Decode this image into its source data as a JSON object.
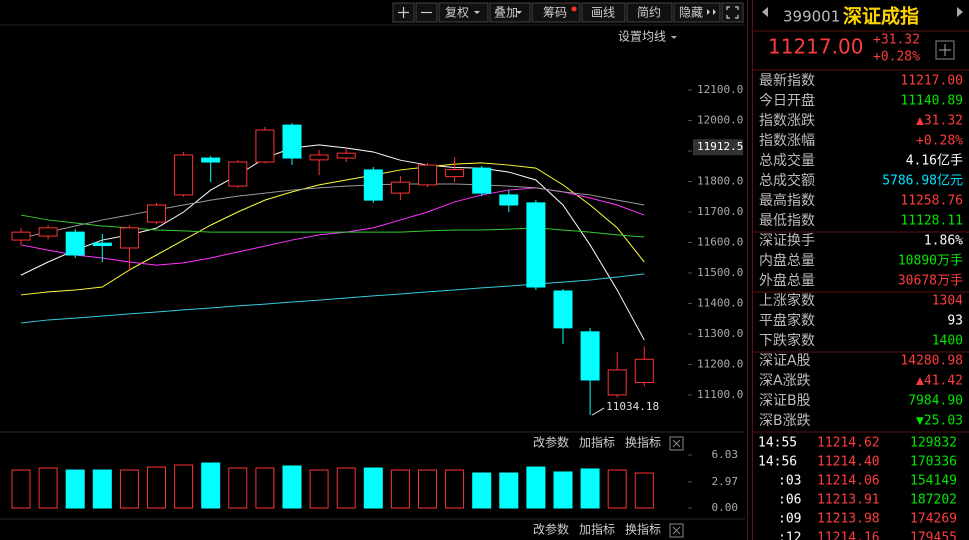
{
  "toolbar": {
    "buttons": [
      "复权",
      "叠加",
      "筹码",
      "画线",
      "简约",
      "隐藏"
    ]
  },
  "ma_setting": "设置均线",
  "panel_buttons": [
    "改参数",
    "加指标",
    "换指标"
  ],
  "chart_data": [
    {
      "type": "candlestick",
      "up_color": "#ff3232",
      "down_color": "#00ffff",
      "open": [
        11608,
        11621,
        11634,
        11598,
        11582,
        11667,
        11756,
        11877,
        11785,
        11864,
        11985,
        11871,
        11877,
        11838,
        11762,
        11789,
        11816,
        11844,
        11756,
        11730,
        11441,
        11307,
        11100,
        11140.89
      ],
      "high": [
        11647,
        11657,
        11644,
        11628,
        11657,
        11730,
        11897,
        11884,
        11870,
        11979,
        11992,
        11903,
        11910,
        11848,
        11818,
        11861,
        11880,
        11851,
        11772,
        11740,
        11448,
        11320,
        11241,
        11258.76
      ],
      "low": [
        11592,
        11610,
        11549,
        11536,
        11510,
        11660,
        11750,
        11798,
        11780,
        11860,
        11854,
        11821,
        11864,
        11730,
        11739,
        11782,
        11798,
        11752,
        11700,
        11444,
        11267,
        11034.18,
        11092,
        11128.11
      ],
      "close": [
        11634,
        11648,
        11559,
        11590,
        11648,
        11723,
        11887,
        11864,
        11864,
        11969,
        11877,
        11887,
        11893,
        11739,
        11798,
        11854,
        11839,
        11762,
        11723,
        11454,
        11320,
        11149,
        11182,
        11217
      ],
      "lines": [
        {
          "color": "#ffffff",
          "values": [
            11493,
            11536,
            11575,
            11608,
            11625,
            11647,
            11700,
            11772,
            11821,
            11877,
            11910,
            11920,
            11910,
            11897,
            11870,
            11854,
            11846,
            11844,
            11831,
            11805,
            11723,
            11592,
            11444,
            11280
          ]
        },
        {
          "color": "#ffff33",
          "values": [
            11428,
            11438,
            11444,
            11454,
            11510,
            11559,
            11608,
            11657,
            11700,
            11739,
            11766,
            11789,
            11805,
            11821,
            11838,
            11848,
            11857,
            11861,
            11854,
            11844,
            11789,
            11723,
            11648,
            11536
          ]
        },
        {
          "color": "#ff33ff",
          "values": [
            11592,
            11575,
            11559,
            11549,
            11536,
            11526,
            11533,
            11549,
            11569,
            11588,
            11608,
            11625,
            11634,
            11648,
            11674,
            11700,
            11733,
            11756,
            11772,
            11779,
            11766,
            11746,
            11723,
            11690
          ]
        },
        {
          "color": "#33cc33",
          "values": [
            11690,
            11674,
            11664,
            11654,
            11648,
            11641,
            11638,
            11634,
            11634,
            11634,
            11634,
            11634,
            11634,
            11634,
            11634,
            11638,
            11641,
            11641,
            11644,
            11648,
            11641,
            11634,
            11625,
            11618
          ]
        },
        {
          "color": "#999999",
          "values": [
            11615,
            11634,
            11654,
            11674,
            11690,
            11707,
            11723,
            11739,
            11752,
            11762,
            11772,
            11779,
            11785,
            11789,
            11792,
            11792,
            11792,
            11789,
            11785,
            11779,
            11766,
            11756,
            11739,
            11723
          ]
        },
        {
          "color": "#33ccdd",
          "values": [
            11336,
            11346,
            11352,
            11359,
            11366,
            11372,
            11379,
            11385,
            11392,
            11398,
            11405,
            11411,
            11418,
            11425,
            11431,
            11438,
            11444,
            11451,
            11457,
            11464,
            11470,
            11477,
            11487,
            11497
          ]
        }
      ],
      "ylim": [
        10985,
        12297
      ],
      "yticks": [
        {
          "value": 11100,
          "label": "11100.0"
        },
        {
          "value": 11200,
          "label": "11200.0"
        },
        {
          "value": 11300,
          "label": "11300.0"
        },
        {
          "value": 11400,
          "label": "11400.0"
        },
        {
          "value": 11500,
          "label": "11500.0"
        },
        {
          "value": 11600,
          "label": "11600.0"
        },
        {
          "value": 11700,
          "label": "11700.0"
        },
        {
          "value": 11800,
          "label": "11800.0"
        },
        {
          "value": 11900,
          "label": "11900.0"
        },
        {
          "value": 12000,
          "label": "12000.0"
        },
        {
          "value": 12100,
          "label": "12100.0"
        }
      ],
      "marker": {
        "value": 11912.5,
        "label": "11912.5"
      },
      "low_label": "11034.18"
    },
    {
      "type": "bar",
      "values": [
        4.32,
        4.55,
        4.32,
        4.32,
        4.32,
        4.66,
        4.89,
        5.12,
        4.55,
        4.55,
        4.78,
        4.32,
        4.55,
        4.55,
        4.32,
        4.32,
        4.32,
        3.98,
        3.98,
        4.66,
        4.1,
        4.44,
        4.32,
        3.98
      ],
      "ylim": [
        0,
        6.6
      ],
      "yticks": [
        {
          "value": 0,
          "label": "0.00"
        },
        2.97,
        6.03
      ]
    }
  ],
  "quote": {
    "code": "399001",
    "name": "深证成指",
    "price": "11217.00",
    "change": "+31.32",
    "change_pct": "+0.28%",
    "groups": [
      [
        {
          "label": "最新指数",
          "value": "11217.00",
          "color": "#ff3c3c"
        },
        {
          "label": "今日开盘",
          "value": "11140.89",
          "color": "#00e600"
        },
        {
          "label": "指数涨跌",
          "value": "▲31.32",
          "color": "#ff3c3c"
        },
        {
          "label": "指数涨幅",
          "value": "+0.28%",
          "color": "#ff3c3c"
        },
        {
          "label": "总成交量",
          "value": "4.16亿手",
          "color": "#ffffff"
        },
        {
          "label": "总成交额",
          "value": "5786.98亿元",
          "color": "#00e5ff"
        },
        {
          "label": "最高指数",
          "value": "11258.76",
          "color": "#ff3c3c"
        },
        {
          "label": "最低指数",
          "value": "11128.11",
          "color": "#00e600"
        }
      ],
      [
        {
          "label": "深证换手",
          "value": "1.86%",
          "color": "#ffffff"
        },
        {
          "label": "内盘总量",
          "value": "10890万手",
          "color": "#00e600"
        },
        {
          "label": "外盘总量",
          "value": "30678万手",
          "color": "#ff3c3c"
        }
      ],
      [
        {
          "label": "上涨家数",
          "value": "1304",
          "color": "#ff3c3c"
        },
        {
          "label": "平盘家数",
          "value": "93",
          "color": "#ffffff"
        },
        {
          "label": "下跌家数",
          "value": "1400",
          "color": "#00e600"
        }
      ],
      [
        {
          "label": "深证A股",
          "value": "14280.98",
          "color": "#ff3c3c"
        },
        {
          "label": "深A涨跌",
          "value": "▲41.42",
          "color": "#ff3c3c"
        },
        {
          "label": "深证B股",
          "value": "7984.90",
          "color": "#00e600"
        },
        {
          "label": "深B涨跌",
          "value": "▼25.03",
          "color": "#00e600"
        }
      ]
    ],
    "ticks": [
      {
        "time": "14:55",
        "price": "11214.62",
        "volume": "129832",
        "volume_color": "#00e600"
      },
      {
        "time": "14:56",
        "price": "11214.40",
        "volume": "170336",
        "volume_color": "#00e600"
      },
      {
        "time": ":03",
        "price": "11214.06",
        "volume": "154149",
        "volume_color": "#00e600"
      },
      {
        "time": ":06",
        "price": "11213.91",
        "volume": "187202",
        "volume_color": "#00e600"
      },
      {
        "time": ":09",
        "price": "11213.98",
        "volume": "174269",
        "volume_color": "#ff3c3c"
      },
      {
        "time": ":12",
        "price": "11214.16",
        "volume": "179455",
        "volume_color": "#ff3c3c"
      }
    ]
  }
}
